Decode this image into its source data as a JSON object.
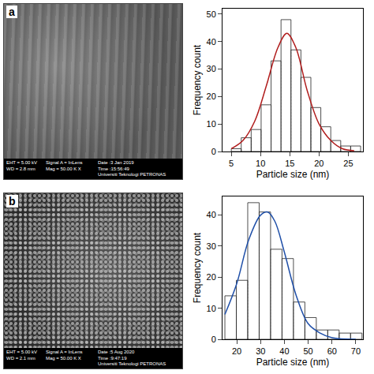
{
  "chart_data": [
    {
      "type": "histogram",
      "bins": [
        5,
        6.7,
        8.4,
        10.1,
        11.8,
        13.5,
        15.2,
        16.9,
        18.6,
        20.3,
        22,
        23.7,
        25.4,
        27.1
      ],
      "values": [
        1,
        5,
        8,
        17,
        33,
        48,
        37,
        27,
        16,
        9,
        4,
        2,
        2
      ],
      "color": "#d42a2a",
      "fit": {
        "x": [
          5,
          7,
          9,
          11,
          13,
          14.5,
          16,
          18,
          20,
          22,
          24,
          26
        ],
        "values": [
          1,
          4,
          11,
          24,
          38,
          43,
          38,
          22,
          10,
          4,
          1,
          0.3
        ],
        "color": "#b01c1c"
      },
      "x_label": "Particle size (nm)",
      "y_label": "Frequency count",
      "xlim": [
        3.5,
        27.5
      ],
      "xticks": [
        5,
        10,
        15,
        20,
        25
      ],
      "ylim": [
        0,
        52
      ],
      "yticks": [
        0,
        10,
        20,
        30,
        40,
        50
      ]
    },
    {
      "type": "histogram",
      "bins": [
        15,
        19.8,
        24.6,
        29.4,
        34.2,
        39,
        43.8,
        48.6,
        53.4,
        58.2,
        63,
        67.8,
        72.6
      ],
      "values": [
        14,
        19,
        44,
        41,
        29,
        26,
        12,
        7,
        3,
        3,
        2,
        2
      ],
      "color": "#27337f",
      "fit": {
        "x": [
          15,
          20,
          25,
          30,
          33,
          36,
          40,
          45,
          50,
          55,
          60,
          70
        ],
        "values": [
          8,
          18,
          32,
          40,
          41,
          38,
          28,
          14,
          5,
          2,
          0.5,
          0
        ],
        "color": "#1f4fa8"
      },
      "x_label": "Particle size (nm)",
      "y_label": "Frequency count",
      "xlim": [
        14,
        73
      ],
      "xticks": [
        20,
        30,
        40,
        50,
        60,
        70
      ],
      "ylim": [
        0,
        46
      ],
      "yticks": [
        0,
        10,
        20,
        30,
        40
      ]
    }
  ],
  "micrographs": [
    {
      "label": "a",
      "info": [
        [
          "EHT = 5.00 kV",
          "WD = 2.8 mm"
        ],
        [
          "Signal A = InLens",
          "Mag = 50.00 K X"
        ],
        [
          "Date :3 Jan 2019",
          "Time :15:56:49",
          "Universiti Teknologi PETRONAS"
        ]
      ]
    },
    {
      "label": "b",
      "info": [
        [
          "EHT = 5.00 kV",
          "WD = 2.1 mm"
        ],
        [
          "Signal A = InLens",
          "Mag = 50.00 K X"
        ],
        [
          "Date :5 Aug 2020",
          "Time :9:47:19",
          "Universiti Teknologi PETRONAS"
        ]
      ]
    }
  ]
}
